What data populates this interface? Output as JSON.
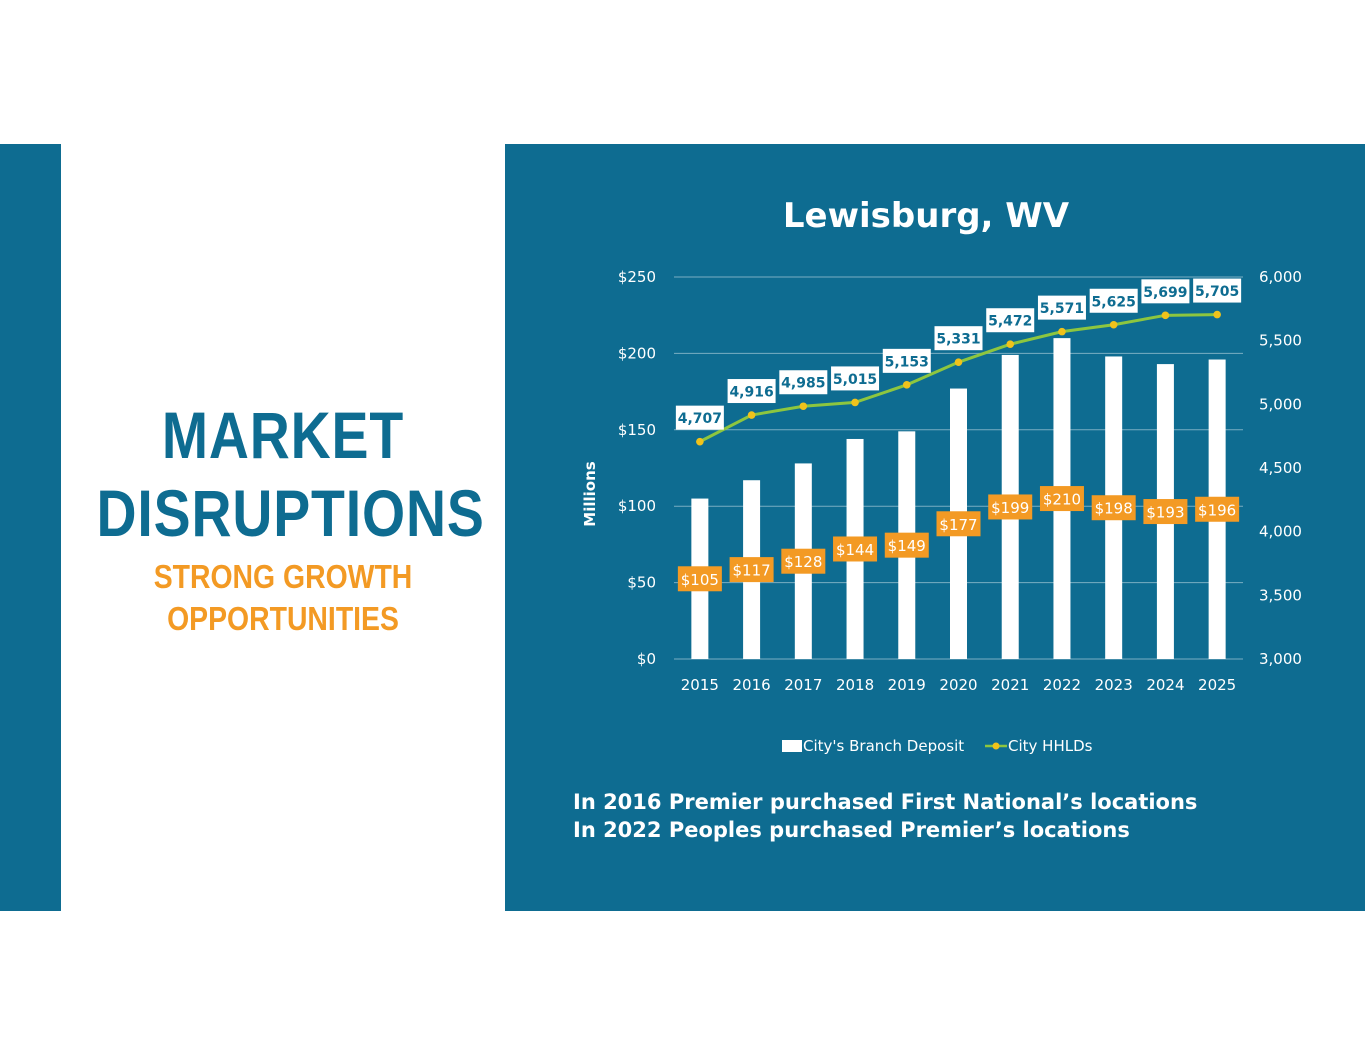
{
  "colors": {
    "panel": "#0e6c91",
    "bar": "#ffffff",
    "line": "#8dc63f",
    "marker": "#f0c21b",
    "deposit_label_bg": "#f39a24",
    "hhld_label_bg": "#ffffff",
    "hhld_label_text": "#0e6c91",
    "headline": "#0e6c91",
    "subhead": "#f39a24"
  },
  "headline": [
    "MARKET",
    "DISRUPTIONS"
  ],
  "subhead": [
    "STRONG GROWTH",
    "OPPORTUNITIES"
  ],
  "notes": [
    "In 2016 Premier purchased First National’s locations",
    "In 2022 Peoples purchased Premier’s locations"
  ],
  "chart_data": {
    "type": "bar",
    "title": "Lewisburg, WV",
    "ylabel": "Millions",
    "categories": [
      "2015",
      "2016",
      "2017",
      "2018",
      "2019",
      "2020",
      "2021",
      "2022",
      "2023",
      "2024",
      "2025"
    ],
    "ylim": [
      0,
      250
    ],
    "y_ticks": [
      0,
      50,
      100,
      150,
      200,
      250
    ],
    "y_tick_labels": [
      "$0",
      "$50",
      "$100",
      "$150",
      "$200",
      "$250"
    ],
    "y2lim": [
      3000,
      6000
    ],
    "y2_ticks": [
      3000,
      3500,
      4000,
      4500,
      5000,
      5500,
      6000
    ],
    "y2_tick_labels": [
      "3,000",
      "3,500",
      "4,000",
      "4,500",
      "5,000",
      "5,500",
      "6,000"
    ],
    "grid": true,
    "legend_position": "bottom",
    "series": [
      {
        "name": "City's Branch Deposit",
        "type": "bar",
        "axis": "left",
        "values": [
          105,
          117,
          128,
          144,
          149,
          177,
          199,
          210,
          198,
          193,
          196
        ],
        "labels": [
          "$105",
          "$117",
          "$128",
          "$144",
          "$149",
          "$177",
          "$199",
          "$210",
          "$198",
          "$193",
          "$196"
        ]
      },
      {
        "name": "City HHLDs",
        "type": "line",
        "axis": "right",
        "values": [
          4707,
          4916,
          4985,
          5015,
          5153,
          5331,
          5472,
          5571,
          5625,
          5699,
          5705
        ],
        "labels": [
          "4,707",
          "4,916",
          "4,985",
          "5,015",
          "5,153",
          "5,331",
          "5,472",
          "5,571",
          "5,625",
          "5,699",
          "5,705"
        ]
      }
    ]
  }
}
